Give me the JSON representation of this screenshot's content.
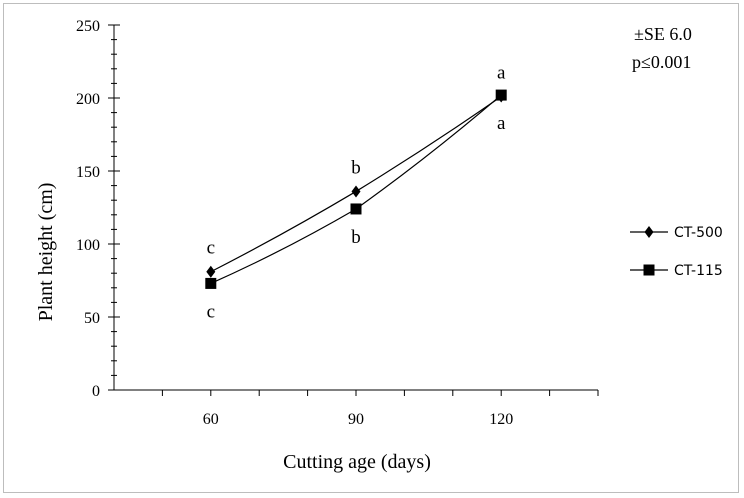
{
  "chart_data": {
    "type": "line",
    "xlabel": "Cutting age (days)",
    "ylabel": "Plant height (cm)",
    "x": [
      60,
      90,
      120
    ],
    "xticks": [
      "60",
      "90",
      "120"
    ],
    "ylim": [
      0,
      250
    ],
    "yticks": [
      0,
      50,
      100,
      150,
      200,
      250
    ],
    "grid": false,
    "legend_position": "right",
    "series": [
      {
        "name": "CT-500",
        "marker": "diamond",
        "values": [
          81,
          136,
          201
        ],
        "letters": [
          "c",
          "b",
          "a"
        ]
      },
      {
        "name": "CT-115",
        "marker": "square",
        "values": [
          73,
          124,
          202
        ],
        "letters": [
          "c",
          "b",
          "a"
        ]
      }
    ],
    "annotations": [
      "±SE 6.0",
      "p≤0.001"
    ],
    "colors": {
      "line": "#000000",
      "frame": "#bdbdbd"
    }
  }
}
